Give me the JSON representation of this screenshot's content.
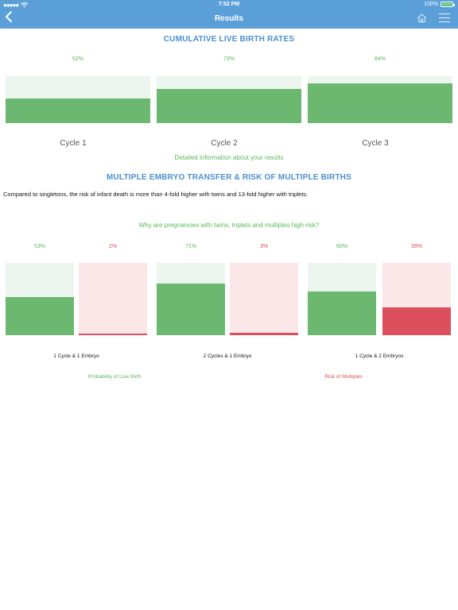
{
  "status_bar": {
    "signal": "●●●●●",
    "wifi_icon": "wifi-icon",
    "time": "7:52 PM",
    "battery_text": "100%"
  },
  "nav": {
    "title": "Results",
    "back_icon": "back-chevron-icon",
    "home_icon": "home-icon",
    "menu_icon": "menu-icon"
  },
  "cumulative": {
    "title": "CUMULATIVE LIVE BIRTH RATES",
    "bars": [
      {
        "label": "Cycle 1",
        "percent_text": "52%",
        "value": 52
      },
      {
        "label": "Cycle 2",
        "percent_text": "73%",
        "value": 73
      },
      {
        "label": "Cycle 3",
        "percent_text": "84%",
        "value": 84
      }
    ],
    "detail_link": "Detailed information about your results"
  },
  "multiple": {
    "title": "MULTIPLE EMBRYO TRANSFER & RISK OF MULTIPLE BIRTHS",
    "paragraph": "Compared to singletons, the risk of infant death is more than 4-fold higher with twins and 13-fold higher with triplets.",
    "why_link": "Why are pregnancies with twins, triplets and multiples high-risk?",
    "groups": [
      {
        "label": "1 Cycle & 1 Embryo",
        "live_text": "53%",
        "live": 53,
        "risk_text": "2%",
        "risk": 2
      },
      {
        "label": "2 Cycles & 1 Embryo",
        "live_text": "71%",
        "live": 71,
        "risk_text": "3%",
        "risk": 3
      },
      {
        "label": "1 Cycle & 2 Embryos",
        "live_text": "60%",
        "live": 60,
        "risk_text": "39%",
        "risk": 39
      }
    ],
    "legend": {
      "live_birth": "Probability of Live Birth",
      "risk": "Risk of Multiples"
    }
  },
  "colors": {
    "nav_blue": "#5b9fd9",
    "title_blue": "#4a8fd0",
    "green": "#6cb870",
    "green_light": "#edf6ee",
    "red": "#dc4f5d",
    "red_light": "#fce7e8"
  }
}
